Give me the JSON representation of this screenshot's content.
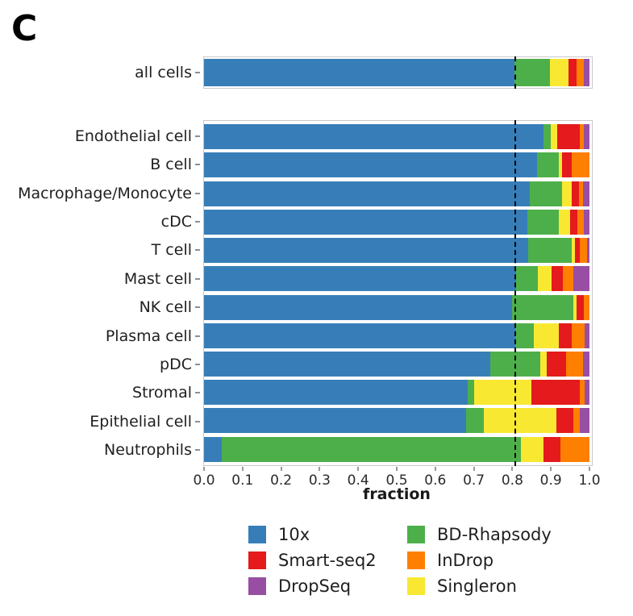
{
  "panel_label": "C",
  "chart_data": {
    "type": "bar",
    "orientation": "horizontal",
    "stacked": true,
    "title": "",
    "xlabel": "fraction",
    "xlim": [
      0.0,
      1.0
    ],
    "xticks": [
      "0.0",
      "0.1",
      "0.2",
      "0.3",
      "0.4",
      "0.5",
      "0.6",
      "0.7",
      "0.8",
      "0.9",
      "1.0"
    ],
    "grid": false,
    "dashed_line_x": 0.805,
    "stack_order": [
      "10x",
      "BD-Rhapsody",
      "Singleron",
      "Smart-seq2",
      "InDrop",
      "DropSeq"
    ],
    "colors": {
      "10x": "#377eb8",
      "Smart-seq2": "#e41a1c",
      "DropSeq": "#984ea3",
      "BD-Rhapsody": "#4daf4a",
      "InDrop": "#ff7f00",
      "Singleron": "#f8e832"
    },
    "top_row": {
      "category": "all cells",
      "fractions": {
        "10x": 0.805,
        "BD-Rhapsody": 0.093,
        "Singleron": 0.048,
        "Smart-seq2": 0.021,
        "InDrop": 0.019,
        "DropSeq": 0.014
      }
    },
    "rows": [
      {
        "category": "Endothelial cell",
        "fractions": {
          "10x": 0.88,
          "BD-Rhapsody": 0.02,
          "Singleron": 0.016,
          "Smart-seq2": 0.058,
          "InDrop": 0.012,
          "DropSeq": 0.014
        }
      },
      {
        "category": "B cell",
        "fractions": {
          "10x": 0.865,
          "BD-Rhapsody": 0.055,
          "Singleron": 0.008,
          "Smart-seq2": 0.027,
          "InDrop": 0.045,
          "DropSeq": 0.0
        }
      },
      {
        "category": "Macrophage/Monocyte",
        "fractions": {
          "10x": 0.845,
          "BD-Rhapsody": 0.083,
          "Singleron": 0.027,
          "Smart-seq2": 0.017,
          "InDrop": 0.012,
          "DropSeq": 0.016
        }
      },
      {
        "category": "cDC",
        "fractions": {
          "10x": 0.838,
          "BD-Rhapsody": 0.082,
          "Singleron": 0.029,
          "Smart-seq2": 0.019,
          "InDrop": 0.018,
          "DropSeq": 0.014
        }
      },
      {
        "category": "T cell",
        "fractions": {
          "10x": 0.84,
          "BD-Rhapsody": 0.115,
          "Singleron": 0.008,
          "Smart-seq2": 0.012,
          "InDrop": 0.018,
          "DropSeq": 0.007
        }
      },
      {
        "category": "Mast cell",
        "fractions": {
          "10x": 0.81,
          "BD-Rhapsody": 0.057,
          "Singleron": 0.034,
          "Smart-seq2": 0.031,
          "InDrop": 0.027,
          "DropSeq": 0.041
        }
      },
      {
        "category": "NK cell",
        "fractions": {
          "10x": 0.8,
          "BD-Rhapsody": 0.158,
          "Singleron": 0.008,
          "Smart-seq2": 0.02,
          "InDrop": 0.014,
          "DropSeq": 0.0
        }
      },
      {
        "category": "Plasma cell",
        "fractions": {
          "10x": 0.808,
          "BD-Rhapsody": 0.047,
          "Singleron": 0.065,
          "Smart-seq2": 0.034,
          "InDrop": 0.034,
          "DropSeq": 0.012
        }
      },
      {
        "category": "pDC",
        "fractions": {
          "10x": 0.742,
          "BD-Rhapsody": 0.131,
          "Singleron": 0.017,
          "Smart-seq2": 0.05,
          "InDrop": 0.044,
          "DropSeq": 0.016
        }
      },
      {
        "category": "Stromal",
        "fractions": {
          "10x": 0.685,
          "BD-Rhapsody": 0.015,
          "Singleron": 0.15,
          "Smart-seq2": 0.124,
          "InDrop": 0.014,
          "DropSeq": 0.012
        }
      },
      {
        "category": "Epithelial cell",
        "fractions": {
          "10x": 0.679,
          "BD-Rhapsody": 0.047,
          "Singleron": 0.189,
          "Smart-seq2": 0.043,
          "InDrop": 0.016,
          "DropSeq": 0.026
        }
      },
      {
        "category": "Neutrophils",
        "fractions": {
          "10x": 0.045,
          "BD-Rhapsody": 0.777,
          "Singleron": 0.058,
          "Smart-seq2": 0.045,
          "InDrop": 0.075,
          "DropSeq": 0.0
        }
      }
    ],
    "legend_position": "bottom"
  },
  "legend": {
    "columns": [
      [
        "10x",
        "Smart-seq2",
        "DropSeq"
      ],
      [
        "BD-Rhapsody",
        "InDrop",
        "Singleron"
      ]
    ]
  }
}
